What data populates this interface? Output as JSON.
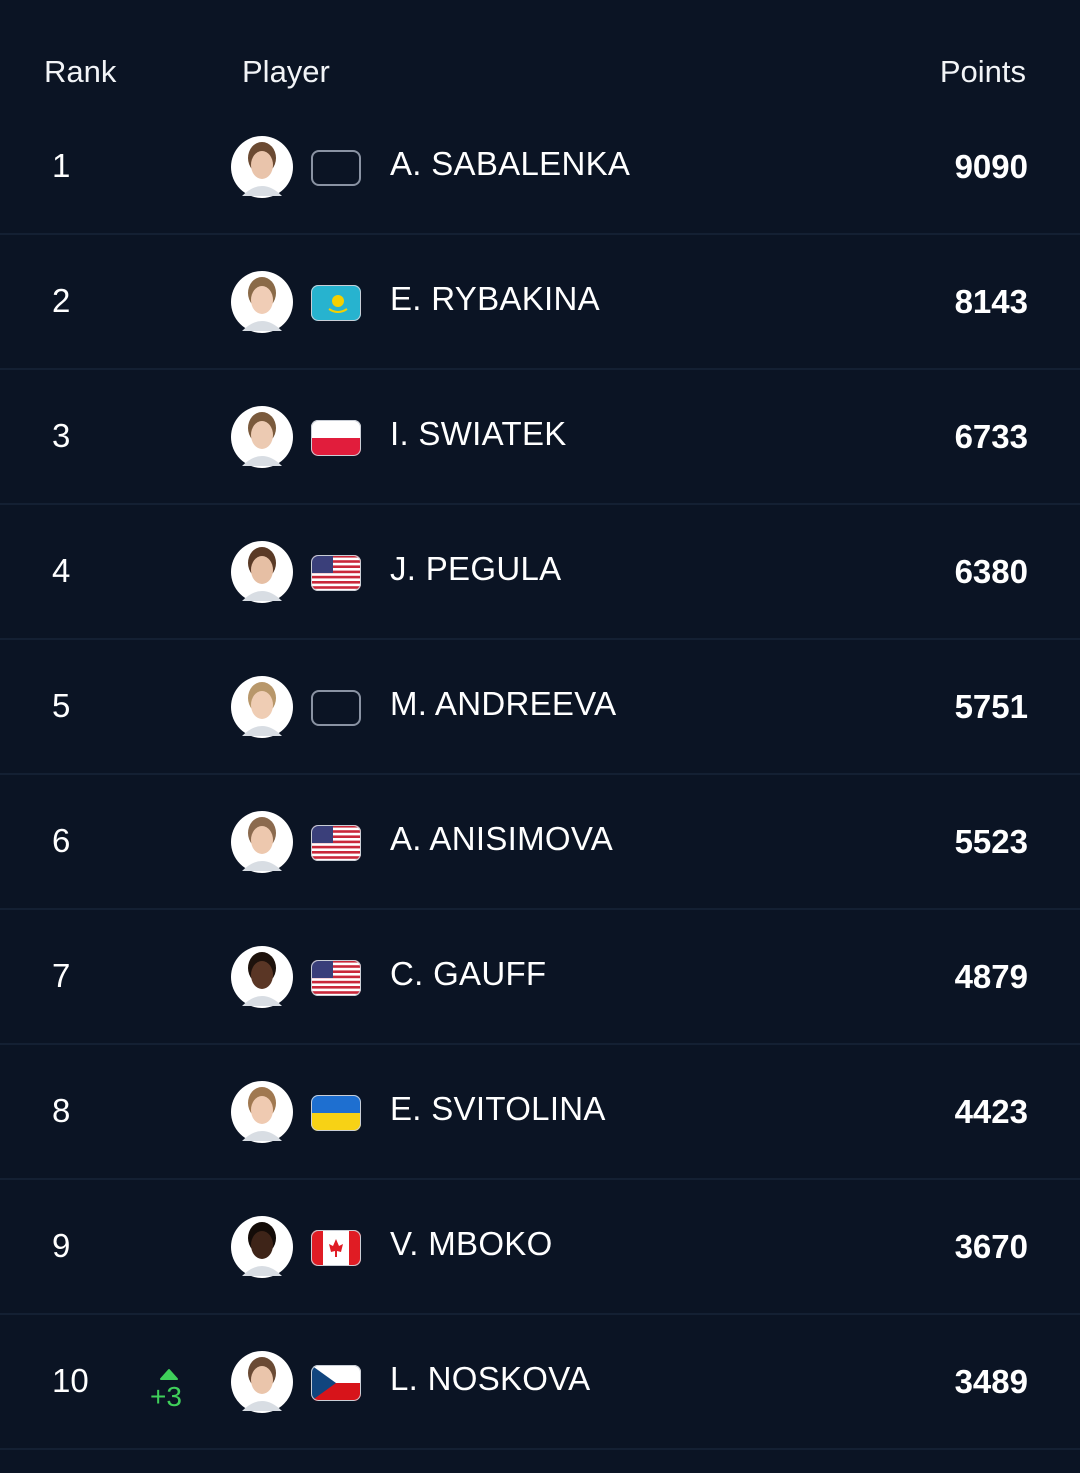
{
  "table": {
    "columns": [
      "Rank",
      "Player",
      "Points"
    ],
    "rows": [
      {
        "rank": 1,
        "player": "A. SABALENKA",
        "points": 9090
      },
      {
        "rank": 2,
        "player": "E. RYBAKINA",
        "points": 8143
      },
      {
        "rank": 3,
        "player": "I. SWIATEK",
        "points": 6733
      },
      {
        "rank": 4,
        "player": "J. PEGULA",
        "points": 6380
      },
      {
        "rank": 5,
        "player": "M. ANDREEVA",
        "points": 5751
      },
      {
        "rank": 6,
        "player": "A. ANISIMOVA",
        "points": 5523
      },
      {
        "rank": 7,
        "player": "C. GAUFF",
        "points": 4879
      },
      {
        "rank": 8,
        "player": "E. SVITOLINA",
        "points": 4423
      },
      {
        "rank": 9,
        "player": "V. MBOKO",
        "points": 3670
      },
      {
        "rank": 10,
        "movement": "+3",
        "player": "L. NOSKOVA",
        "points": 3489
      }
    ]
  }
}
